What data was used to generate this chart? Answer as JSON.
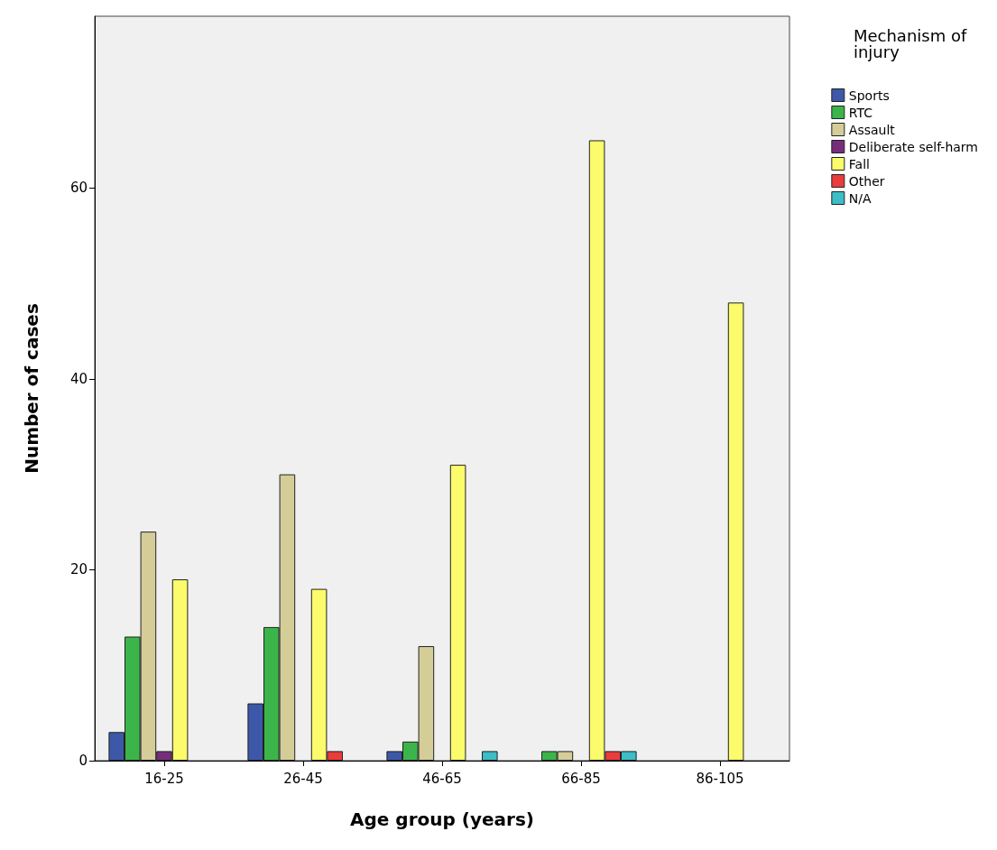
{
  "chart_data": {
    "type": "bar",
    "xlabel": "Age group (years)",
    "ylabel": "Number of cases",
    "legend_title": "Mechanism of injury",
    "legend": "top right",
    "grid": false,
    "categories": [
      "16-25",
      "26-45",
      "46-65",
      "66-85",
      "86-105"
    ],
    "ylim": [
      0,
      78
    ],
    "yticks": [
      0,
      20,
      40,
      60
    ],
    "series": [
      {
        "name": "Sports",
        "color": "#3d58a8",
        "values": [
          3,
          6,
          1,
          0,
          0
        ]
      },
      {
        "name": "RTC",
        "color": "#3bb54a",
        "values": [
          13,
          14,
          2,
          1,
          0
        ]
      },
      {
        "name": "Assault",
        "color": "#d5cd98",
        "values": [
          24,
          30,
          12,
          1,
          0
        ]
      },
      {
        "name": "Deliberate self-harm",
        "color": "#772d7a",
        "values": [
          1,
          0,
          0,
          0,
          0
        ]
      },
      {
        "name": "Fall",
        "color": "#fbfb6b",
        "values": [
          19,
          18,
          31,
          65,
          48
        ]
      },
      {
        "name": "Other",
        "color": "#ec3b3b",
        "values": [
          0,
          1,
          0,
          1,
          0
        ]
      },
      {
        "name": "N/A",
        "color": "#3cbdc7",
        "values": [
          0,
          0,
          1,
          1,
          0
        ]
      }
    ]
  }
}
